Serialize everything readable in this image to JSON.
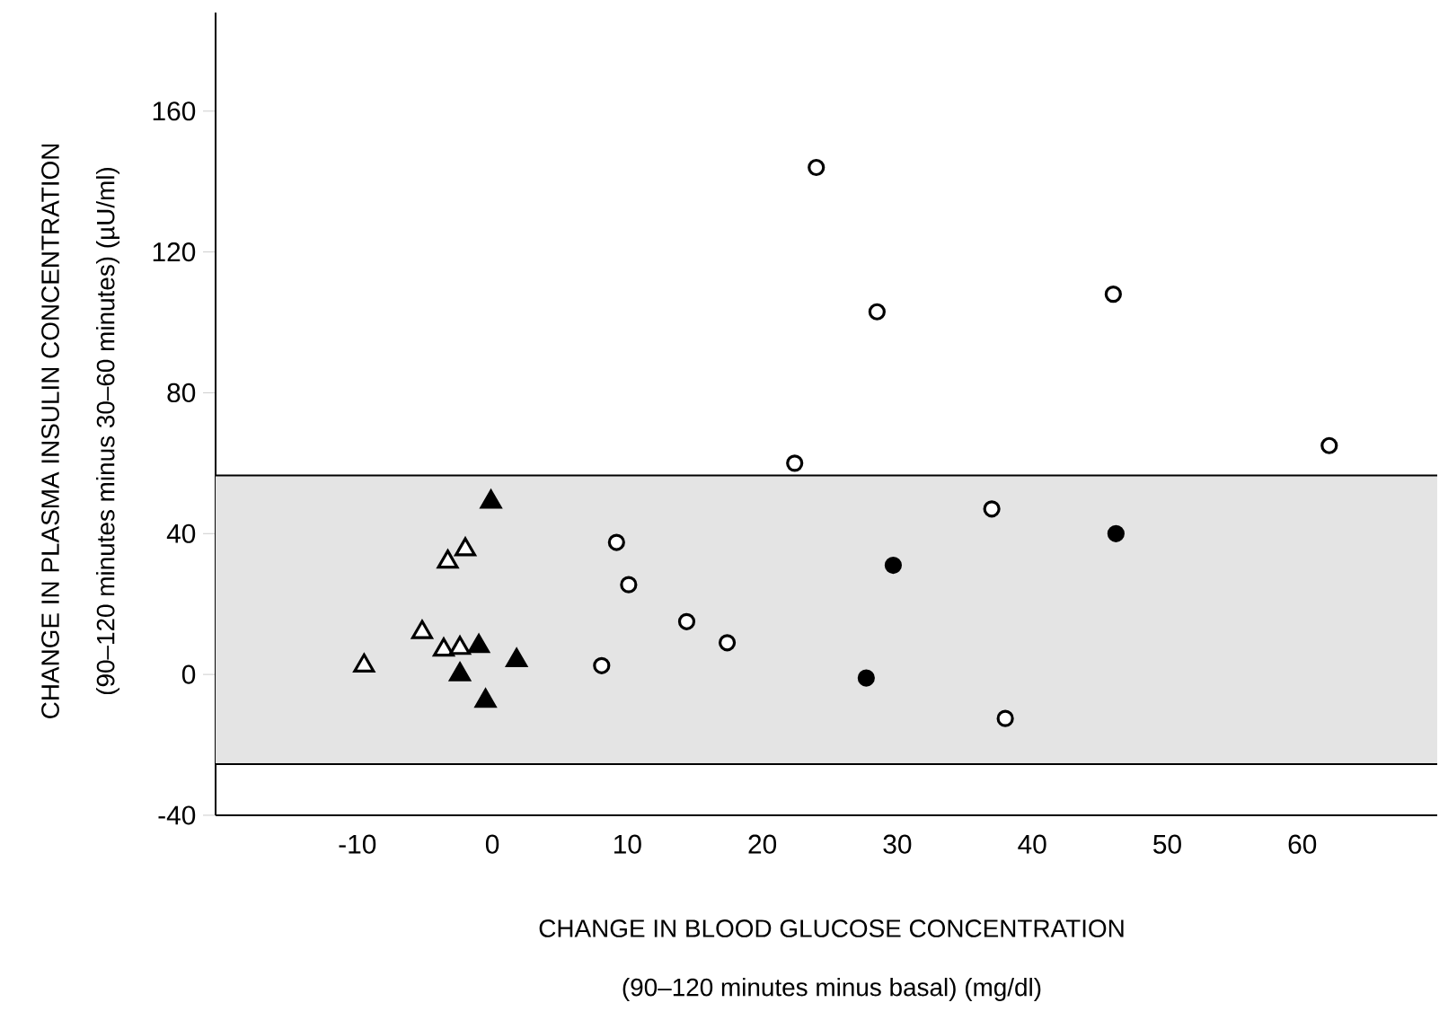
{
  "chart_data": {
    "type": "scatter",
    "xlabel": "CHANGE IN BLOOD GLUCOSE CONCENTRATION",
    "ylabel": "CHANGE IN PLASMA INSULIN CONCENTRATION",
    "annotations": [
      "(90–120 minutes minus basal) (mg/dl)",
      "(90–120 minutes minus 30–60 minutes) (µU/ml)"
    ],
    "xlim": [
      -20.5,
      70
    ],
    "xticks": [
      -10,
      0,
      10,
      20,
      30,
      40,
      50,
      60
    ],
    "ylim": [
      -40,
      188
    ],
    "yticks": [
      -40,
      0,
      40,
      80,
      120,
      160
    ],
    "bands": [
      {
        "axis": "y",
        "from": -25.5,
        "to": 56.5,
        "color": "#e4e4e4"
      }
    ],
    "ref_lines": [
      {
        "axis": "y",
        "value": -25.5,
        "color": "#000000"
      },
      {
        "axis": "y",
        "value": 56.5,
        "color": "#000000"
      }
    ],
    "series": [
      {
        "color": "#ffffff",
        "marker": "circle",
        "x": [
          24,
          28.5,
          46,
          62,
          22.4,
          37,
          9.2,
          10.1,
          14.4,
          17.4,
          8.1,
          38
        ],
        "values": [
          144,
          103,
          108,
          65,
          60,
          47,
          37.5,
          25.5,
          15,
          9,
          2.5,
          -12.5
        ]
      },
      {
        "color": "#000000",
        "marker": "circle",
        "x": [
          46.2,
          29.7,
          27.7
        ],
        "values": [
          40,
          31,
          -1
        ]
      },
      {
        "color": "#ffffff",
        "marker": "triangle",
        "x": [
          -2,
          -3.3,
          -5.2,
          -3.6,
          -2.4,
          -9.5
        ],
        "values": [
          35.5,
          32,
          12,
          7,
          7.5,
          2.5
        ]
      },
      {
        "color": "#000000",
        "marker": "triangle",
        "x": [
          -0.1,
          -1,
          -2.4,
          1.8,
          -0.5
        ],
        "values": [
          49,
          8,
          0,
          4,
          -7.5
        ]
      }
    ]
  }
}
